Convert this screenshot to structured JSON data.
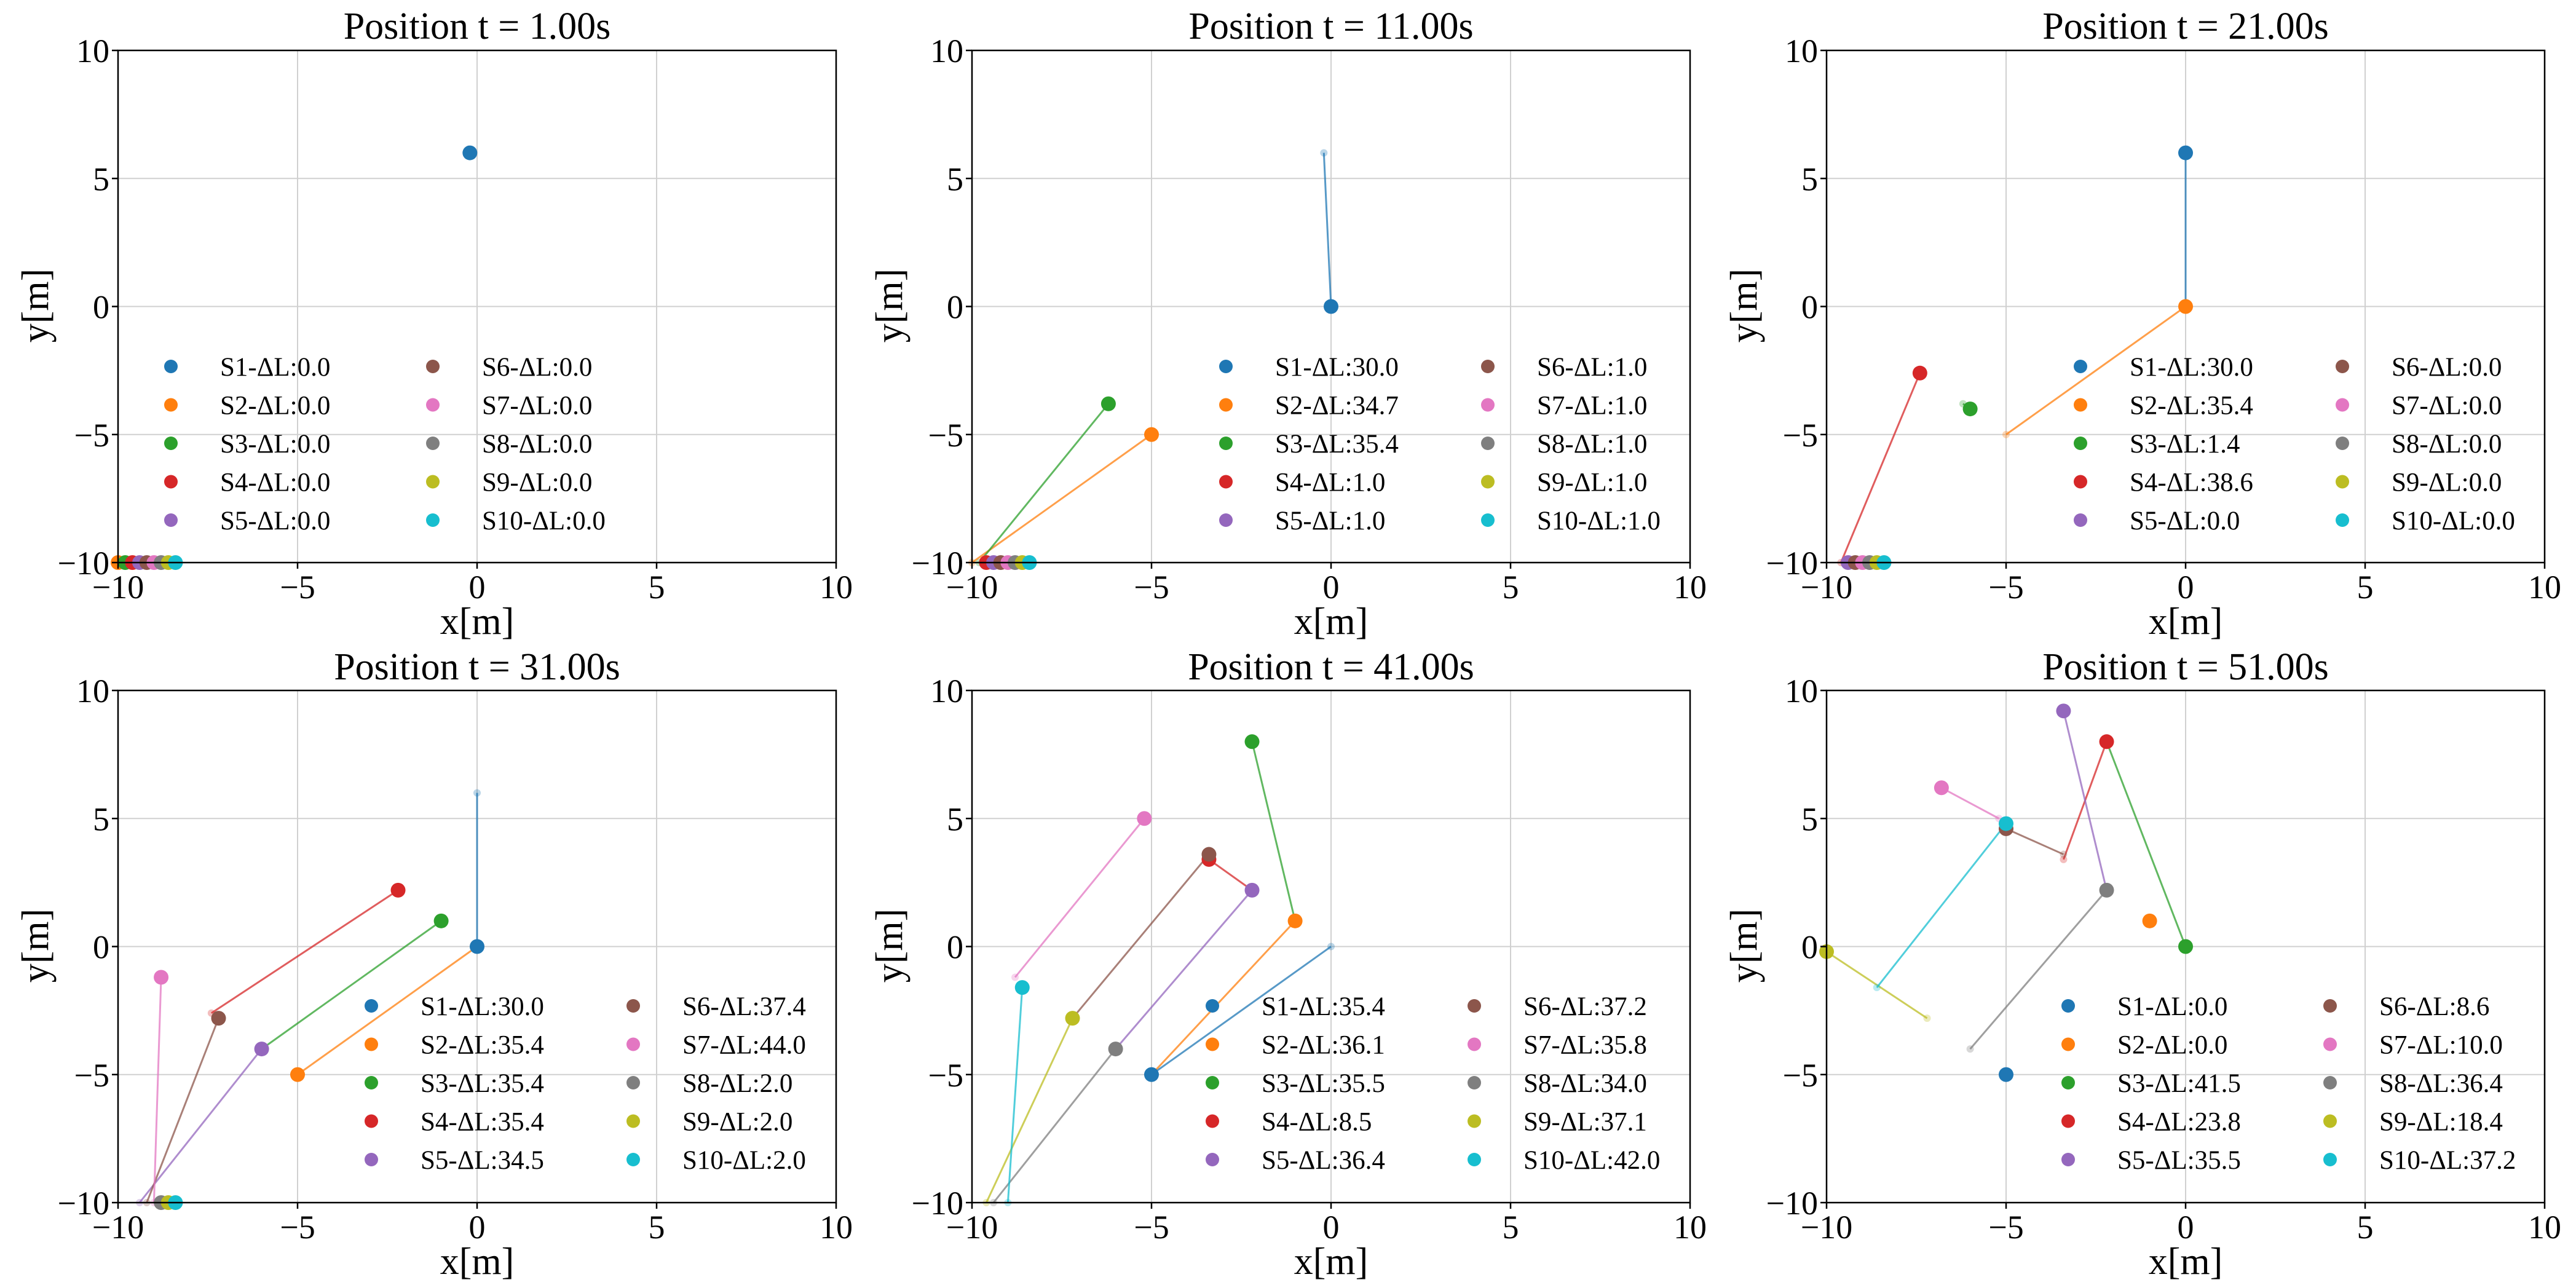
{
  "palette": [
    "#1f77b4",
    "#ff7f0e",
    "#2ca02c",
    "#d62728",
    "#9467bd",
    "#8c564b",
    "#e377c2",
    "#7f7f7f",
    "#bcbd22",
    "#17becf"
  ],
  "chart_data": [
    {
      "type": "scatter",
      "title": "Position t = 1.00s",
      "xlabel": "x[m]",
      "ylabel": "y[m]",
      "xlim": [
        -10,
        10
      ],
      "ylim": [
        -10,
        10
      ],
      "xticks": [
        -10,
        -5,
        0,
        5,
        10
      ],
      "yticks": [
        -10,
        -5,
        0,
        5,
        10
      ],
      "grid": true,
      "legend_position": "lower-left",
      "legend": [
        "S1-ΔL:0.0",
        "S2-ΔL:0.0",
        "S3-ΔL:0.0",
        "S4-ΔL:0.0",
        "S5-ΔL:0.0",
        "S6-ΔL:0.0",
        "S7-ΔL:0.0",
        "S8-ΔL:0.0",
        "S9-ΔL:0.0",
        "S10-ΔL:0.0"
      ],
      "series": [
        {
          "name": "S1",
          "prev": null,
          "cur": [
            -0.2,
            6
          ]
        },
        {
          "name": "S2",
          "prev": null,
          "cur": [
            -10,
            -10
          ]
        },
        {
          "name": "S3",
          "prev": null,
          "cur": [
            -9.8,
            -10
          ]
        },
        {
          "name": "S4",
          "prev": null,
          "cur": [
            -9.6,
            -10
          ]
        },
        {
          "name": "S5",
          "prev": null,
          "cur": [
            -9.4,
            -10
          ]
        },
        {
          "name": "S6",
          "prev": null,
          "cur": [
            -9.2,
            -10
          ]
        },
        {
          "name": "S7",
          "prev": null,
          "cur": [
            -9.0,
            -10
          ]
        },
        {
          "name": "S8",
          "prev": null,
          "cur": [
            -8.8,
            -10
          ]
        },
        {
          "name": "S9",
          "prev": null,
          "cur": [
            -8.6,
            -10
          ]
        },
        {
          "name": "S10",
          "prev": null,
          "cur": [
            -8.4,
            -10
          ]
        }
      ]
    },
    {
      "type": "scatter",
      "title": "Position t = 11.00s",
      "xlabel": "x[m]",
      "ylabel": "y[m]",
      "xlim": [
        -10,
        10
      ],
      "ylim": [
        -10,
        10
      ],
      "xticks": [
        -10,
        -5,
        0,
        5,
        10
      ],
      "yticks": [
        -10,
        -5,
        0,
        5,
        10
      ],
      "grid": true,
      "legend_position": "lower-right",
      "legend": [
        "S1-ΔL:30.0",
        "S2-ΔL:34.7",
        "S3-ΔL:35.4",
        "S4-ΔL:1.0",
        "S5-ΔL:1.0",
        "S6-ΔL:1.0",
        "S7-ΔL:1.0",
        "S8-ΔL:1.0",
        "S9-ΔL:1.0",
        "S10-ΔL:1.0"
      ],
      "series": [
        {
          "name": "S1",
          "prev": [
            -0.2,
            6
          ],
          "cur": [
            0,
            0
          ]
        },
        {
          "name": "S2",
          "prev": [
            -10,
            -10
          ],
          "cur": [
            -5,
            -5
          ]
        },
        {
          "name": "S3",
          "prev": [
            -9.8,
            -10
          ],
          "cur": [
            -6.2,
            -3.8
          ]
        },
        {
          "name": "S4",
          "prev": [
            -9.6,
            -10
          ],
          "cur": [
            -9.6,
            -10
          ]
        },
        {
          "name": "S5",
          "prev": [
            -9.4,
            -10
          ],
          "cur": [
            -9.4,
            -10
          ]
        },
        {
          "name": "S6",
          "prev": [
            -9.2,
            -10
          ],
          "cur": [
            -9.2,
            -10
          ]
        },
        {
          "name": "S7",
          "prev": [
            -9.0,
            -10
          ],
          "cur": [
            -9.0,
            -10
          ]
        },
        {
          "name": "S8",
          "prev": [
            -8.8,
            -10
          ],
          "cur": [
            -8.8,
            -10
          ]
        },
        {
          "name": "S9",
          "prev": [
            -8.6,
            -10
          ],
          "cur": [
            -8.6,
            -10
          ]
        },
        {
          "name": "S10",
          "prev": [
            -8.4,
            -10
          ],
          "cur": [
            -8.4,
            -10
          ]
        }
      ]
    },
    {
      "type": "scatter",
      "title": "Position t = 21.00s",
      "xlabel": "x[m]",
      "ylabel": "y[m]",
      "xlim": [
        -10,
        10
      ],
      "ylim": [
        -10,
        10
      ],
      "xticks": [
        -10,
        -5,
        0,
        5,
        10
      ],
      "yticks": [
        -10,
        -5,
        0,
        5,
        10
      ],
      "grid": true,
      "legend_position": "lower-right",
      "legend": [
        "S1-ΔL:30.0",
        "S2-ΔL:35.4",
        "S3-ΔL:1.4",
        "S4-ΔL:38.6",
        "S5-ΔL:0.0",
        "S6-ΔL:0.0",
        "S7-ΔL:0.0",
        "S8-ΔL:0.0",
        "S9-ΔL:0.0",
        "S10-ΔL:0.0"
      ],
      "series": [
        {
          "name": "S1",
          "prev": [
            0,
            0
          ],
          "cur": [
            0,
            6
          ]
        },
        {
          "name": "S2",
          "prev": [
            -5,
            -5
          ],
          "cur": [
            0,
            0
          ]
        },
        {
          "name": "S3",
          "prev": [
            -6.2,
            -3.8
          ],
          "cur": [
            -6,
            -4
          ]
        },
        {
          "name": "S4",
          "prev": [
            -9.6,
            -10
          ],
          "cur": [
            -7.4,
            -2.6
          ]
        },
        {
          "name": "S5",
          "prev": [
            -9.4,
            -10
          ],
          "cur": [
            -9.4,
            -10
          ]
        },
        {
          "name": "S6",
          "prev": [
            -9.2,
            -10
          ],
          "cur": [
            -9.2,
            -10
          ]
        },
        {
          "name": "S7",
          "prev": [
            -9.0,
            -10
          ],
          "cur": [
            -9.0,
            -10
          ]
        },
        {
          "name": "S8",
          "prev": [
            -8.8,
            -10
          ],
          "cur": [
            -8.8,
            -10
          ]
        },
        {
          "name": "S9",
          "prev": [
            -8.6,
            -10
          ],
          "cur": [
            -8.6,
            -10
          ]
        },
        {
          "name": "S10",
          "prev": [
            -8.4,
            -10
          ],
          "cur": [
            -8.4,
            -10
          ]
        }
      ]
    },
    {
      "type": "scatter",
      "title": "Position t = 31.00s",
      "xlabel": "x[m]",
      "ylabel": "y[m]",
      "xlim": [
        -10,
        10
      ],
      "ylim": [
        -10,
        10
      ],
      "xticks": [
        -10,
        -5,
        0,
        5,
        10
      ],
      "yticks": [
        -10,
        -5,
        0,
        5,
        10
      ],
      "grid": true,
      "legend_position": "lower-right",
      "legend": [
        "S1-ΔL:30.0",
        "S2-ΔL:35.4",
        "S3-ΔL:35.4",
        "S4-ΔL:35.4",
        "S5-ΔL:34.5",
        "S6-ΔL:37.4",
        "S7-ΔL:44.0",
        "S8-ΔL:2.0",
        "S9-ΔL:2.0",
        "S10-ΔL:2.0"
      ],
      "series": [
        {
          "name": "S1",
          "prev": [
            0,
            6
          ],
          "cur": [
            0,
            0
          ]
        },
        {
          "name": "S2",
          "prev": [
            0,
            0
          ],
          "cur": [
            -5,
            -5
          ]
        },
        {
          "name": "S3",
          "prev": [
            -6,
            -4
          ],
          "cur": [
            -1,
            1
          ]
        },
        {
          "name": "S4",
          "prev": [
            -7.4,
            -2.6
          ],
          "cur": [
            -2.2,
            2.2
          ]
        },
        {
          "name": "S5",
          "prev": [
            -9.4,
            -10
          ],
          "cur": [
            -6,
            -4
          ]
        },
        {
          "name": "S6",
          "prev": [
            -9.2,
            -10
          ],
          "cur": [
            -7.2,
            -2.8
          ]
        },
        {
          "name": "S7",
          "prev": [
            -9.0,
            -10
          ],
          "cur": [
            -8.8,
            -1.2
          ]
        },
        {
          "name": "S8",
          "prev": [
            -8.8,
            -10
          ],
          "cur": [
            -8.8,
            -10
          ]
        },
        {
          "name": "S9",
          "prev": [
            -8.6,
            -10
          ],
          "cur": [
            -8.6,
            -10
          ]
        },
        {
          "name": "S10",
          "prev": [
            -8.4,
            -10
          ],
          "cur": [
            -8.4,
            -10
          ]
        }
      ]
    },
    {
      "type": "scatter",
      "title": "Position t = 41.00s",
      "xlabel": "x[m]",
      "ylabel": "y[m]",
      "xlim": [
        -10,
        10
      ],
      "ylim": [
        -10,
        10
      ],
      "xticks": [
        -10,
        -5,
        0,
        5,
        10
      ],
      "yticks": [
        -10,
        -5,
        0,
        5,
        10
      ],
      "grid": true,
      "legend_position": "lower-right",
      "legend": [
        "S1-ΔL:35.4",
        "S2-ΔL:36.1",
        "S3-ΔL:35.5",
        "S4-ΔL:8.5",
        "S5-ΔL:36.4",
        "S6-ΔL:37.2",
        "S7-ΔL:35.8",
        "S8-ΔL:34.0",
        "S9-ΔL:37.1",
        "S10-ΔL:42.0"
      ],
      "series": [
        {
          "name": "S1",
          "prev": [
            0,
            0
          ],
          "cur": [
            -5,
            -5
          ]
        },
        {
          "name": "S2",
          "prev": [
            -5,
            -5
          ],
          "cur": [
            -1,
            1
          ]
        },
        {
          "name": "S3",
          "prev": [
            -1,
            1
          ],
          "cur": [
            -2.2,
            8
          ]
        },
        {
          "name": "S4",
          "prev": [
            -2.2,
            2.2
          ],
          "cur": [
            -3.4,
            3.4
          ]
        },
        {
          "name": "S5",
          "prev": [
            -6,
            -4
          ],
          "cur": [
            -2.2,
            2.2
          ]
        },
        {
          "name": "S6",
          "prev": [
            -7.2,
            -2.8
          ],
          "cur": [
            -3.4,
            3.6
          ]
        },
        {
          "name": "S7",
          "prev": [
            -8.8,
            -1.2
          ],
          "cur": [
            -5.2,
            5
          ]
        },
        {
          "name": "S8",
          "prev": [
            -9.4,
            -10
          ],
          "cur": [
            -6,
            -4
          ]
        },
        {
          "name": "S9",
          "prev": [
            -9.6,
            -10
          ],
          "cur": [
            -7.2,
            -2.8
          ]
        },
        {
          "name": "S10",
          "prev": [
            -9,
            -10
          ],
          "cur": [
            -8.6,
            -1.6
          ]
        }
      ]
    },
    {
      "type": "scatter",
      "title": "Position t = 51.00s",
      "xlabel": "x[m]",
      "ylabel": "y[m]",
      "xlim": [
        -10,
        10
      ],
      "ylim": [
        -10,
        10
      ],
      "xticks": [
        -10,
        -5,
        0,
        5,
        10
      ],
      "yticks": [
        -10,
        -5,
        0,
        5,
        10
      ],
      "grid": true,
      "legend_position": "lower-right",
      "legend": [
        "S1-ΔL:0.0",
        "S2-ΔL:0.0",
        "S3-ΔL:41.5",
        "S4-ΔL:23.8",
        "S5-ΔL:35.5",
        "S6-ΔL:8.6",
        "S7-ΔL:10.0",
        "S8-ΔL:36.4",
        "S9-ΔL:18.4",
        "S10-ΔL:37.2"
      ],
      "series": [
        {
          "name": "S1",
          "prev": null,
          "cur": [
            -5,
            -5
          ]
        },
        {
          "name": "S2",
          "prev": null,
          "cur": [
            -1,
            1
          ]
        },
        {
          "name": "S3",
          "prev": [
            -2.2,
            8
          ],
          "cur": [
            0,
            0
          ]
        },
        {
          "name": "S4",
          "prev": [
            -3.4,
            3.4
          ],
          "cur": [
            -2.2,
            8
          ]
        },
        {
          "name": "S5",
          "prev": [
            -2.2,
            2.2
          ],
          "cur": [
            -3.4,
            9.2
          ]
        },
        {
          "name": "S6",
          "prev": [
            -3.4,
            3.6
          ],
          "cur": [
            -5,
            4.6
          ]
        },
        {
          "name": "S7",
          "prev": [
            -5.2,
            5
          ],
          "cur": [
            -6.8,
            6.2
          ]
        },
        {
          "name": "S8",
          "prev": [
            -6,
            -4
          ],
          "cur": [
            -2.2,
            2.2
          ]
        },
        {
          "name": "S9",
          "prev": [
            -7.2,
            -2.8
          ],
          "cur": [
            -10,
            -0.2
          ]
        },
        {
          "name": "S10",
          "prev": [
            -8.6,
            -1.6
          ],
          "cur": [
            -5,
            4.8
          ]
        }
      ]
    }
  ]
}
